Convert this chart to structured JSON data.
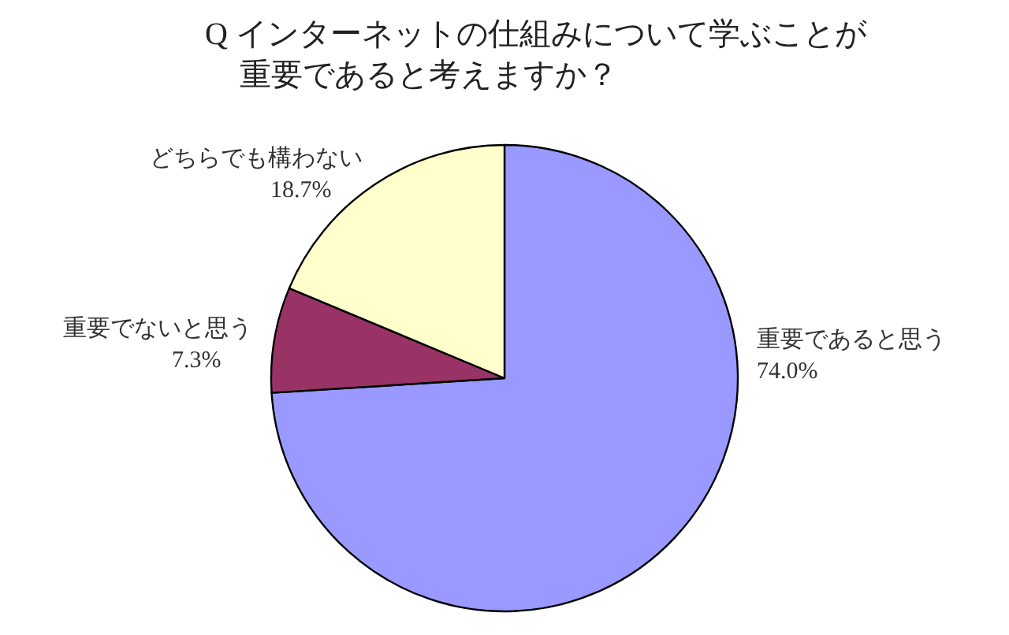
{
  "chart_data": {
    "type": "pie",
    "title": "Q インターネットの仕組みについて学ぶことが重要であると考えますか？",
    "categories": [
      "重要であると思う",
      "重要でないと思う",
      "どちらでも構わない"
    ],
    "values": [
      74.0,
      7.3,
      18.7
    ],
    "value_labels": [
      "74.0%",
      "7.3%",
      "18.7%"
    ],
    "colors": [
      "#9999ff",
      "#993366",
      "#ffffcc"
    ]
  }
}
